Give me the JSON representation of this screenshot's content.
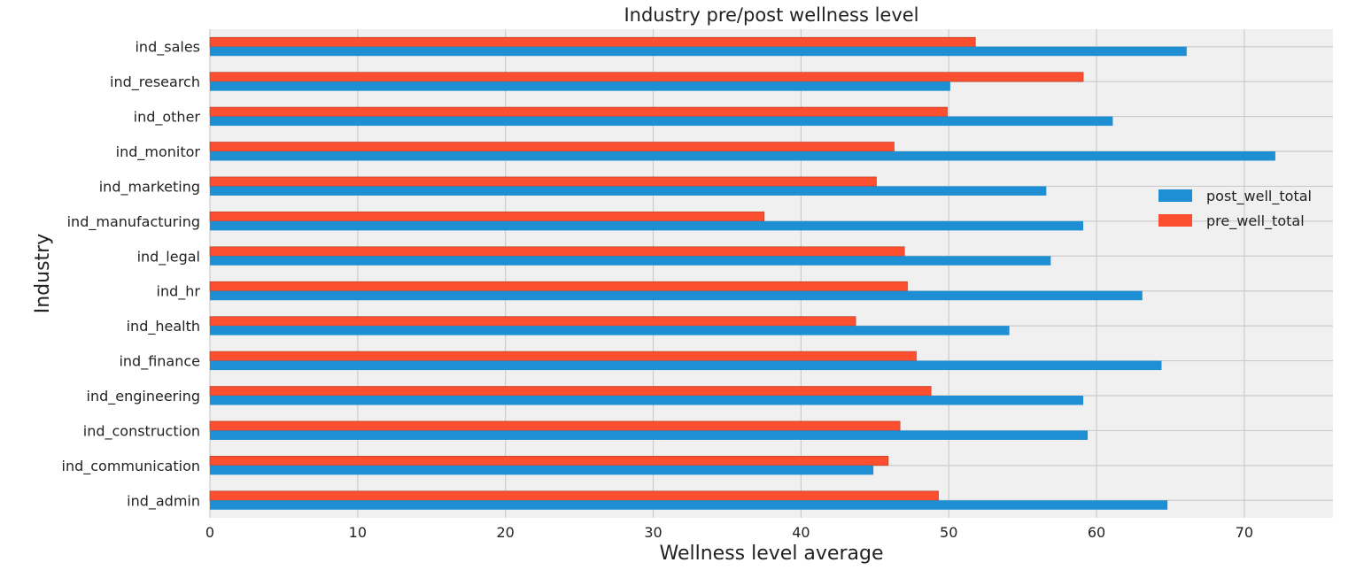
{
  "chart_data": {
    "type": "bar",
    "orientation": "horizontal",
    "title": "Industry pre/post wellness level",
    "xlabel": "Wellness level average",
    "ylabel": "Industry",
    "xlim": [
      0,
      76
    ],
    "xticks": [
      "0",
      "10",
      "20",
      "30",
      "40",
      "50",
      "60",
      "70"
    ],
    "grid": true,
    "legend_position": "center-right",
    "categories": [
      "ind_sales",
      "ind_research",
      "ind_other",
      "ind_monitor",
      "ind_marketing",
      "ind_manufacturing",
      "ind_legal",
      "ind_hr",
      "ind_health",
      "ind_finance",
      "ind_engineering",
      "ind_construction",
      "ind_communication",
      "ind_admin"
    ],
    "series": [
      {
        "name": "post_well_total",
        "color": "#1f8fd3",
        "values": [
          66.1,
          50.1,
          61.1,
          72.1,
          56.6,
          59.1,
          56.9,
          63.1,
          54.1,
          64.4,
          59.1,
          59.4,
          44.9,
          64.8
        ]
      },
      {
        "name": "pre_well_total",
        "color": "#fc4f30",
        "values": [
          51.8,
          59.1,
          49.9,
          46.3,
          45.1,
          37.5,
          47.0,
          47.2,
          43.7,
          47.8,
          48.8,
          46.7,
          45.9,
          49.3
        ]
      }
    ]
  }
}
